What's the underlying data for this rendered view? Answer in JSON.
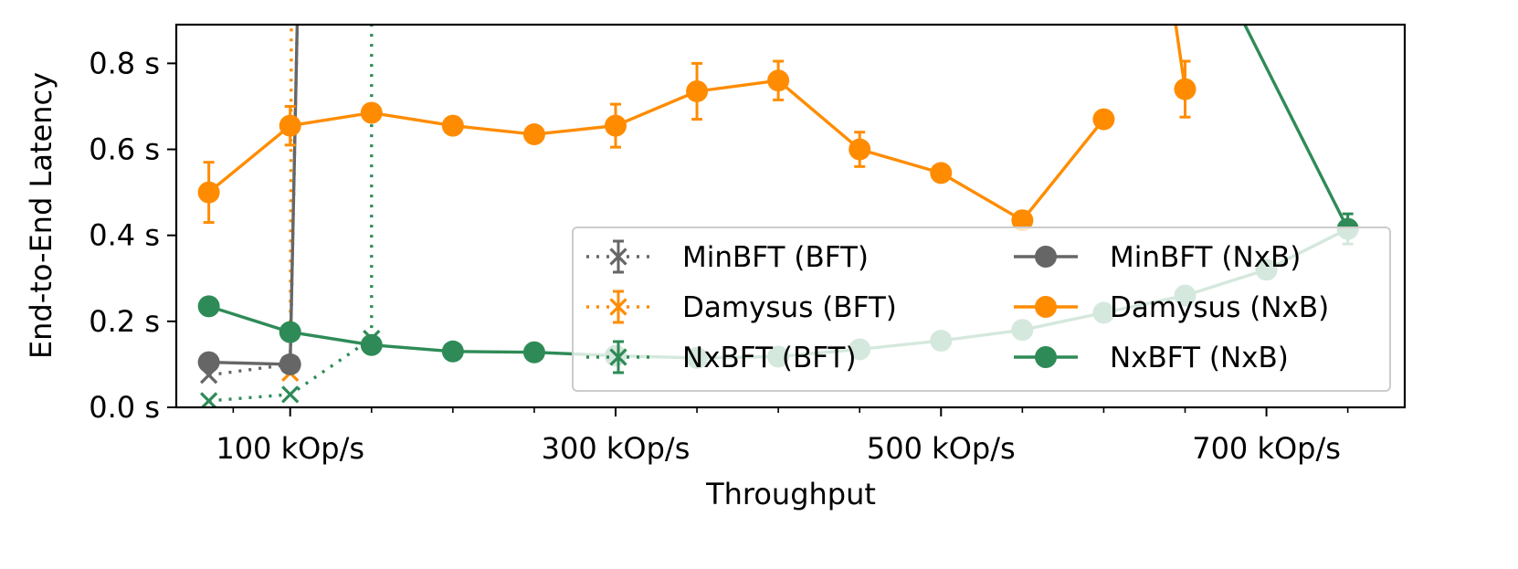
{
  "chart_data": {
    "type": "line",
    "title": "",
    "xlabel": "Throughput",
    "ylabel": "End-to-End Latency",
    "xlim": [
      30,
      785
    ],
    "ylim": [
      0,
      0.89
    ],
    "x_ticks": [
      {
        "value": 100,
        "label": "100 kOp/s"
      },
      {
        "value": 300,
        "label": "300 kOp/s"
      },
      {
        "value": 500,
        "label": "500 kOp/s"
      },
      {
        "value": 700,
        "label": "700 kOp/s"
      }
    ],
    "x_minor_ticks": [
      65,
      150,
      200,
      250,
      350,
      400,
      450,
      550,
      600,
      650,
      750
    ],
    "y_ticks": [
      {
        "value": 0.0,
        "label": "0.0 s"
      },
      {
        "value": 0.2,
        "label": "0.2 s"
      },
      {
        "value": 0.4,
        "label": "0.4 s"
      },
      {
        "value": 0.6,
        "label": "0.6 s"
      },
      {
        "value": 0.8,
        "label": "0.8 s"
      }
    ],
    "grid": false,
    "legend_position": "lower-right",
    "legend_columns": 2,
    "series": [
      {
        "name": "MinBFT (BFT)",
        "color": "#666666",
        "linestyle": "dotted",
        "marker": "x",
        "x": [
          50,
          100,
          106
        ],
        "y": [
          0.075,
          0.1,
          1.2
        ],
        "err": [
          0,
          0,
          0
        ]
      },
      {
        "name": "Damysus (BFT)",
        "color": "#ff8c00",
        "linestyle": "dotted",
        "marker": "x",
        "x": [
          100,
          101
        ],
        "y": [
          0.08,
          1.2
        ],
        "err": [
          0,
          0
        ]
      },
      {
        "name": "NxBFT (BFT)",
        "color": "#2e8b57",
        "linestyle": "dotted",
        "marker": "x",
        "x": [
          50,
          100,
          150,
          150
        ],
        "y": [
          0.015,
          0.03,
          0.16,
          1.2
        ],
        "err": [
          0,
          0,
          0,
          0
        ]
      },
      {
        "name": "MinBFT (NxB)",
        "color": "#666666",
        "linestyle": "solid",
        "marker": "o",
        "x": [
          50,
          100,
          106
        ],
        "y": [
          0.105,
          0.1,
          1.2
        ],
        "err": [
          0,
          0,
          0
        ]
      },
      {
        "name": "Damysus (NxB)",
        "color": "#ff8c00",
        "linestyle": "solid",
        "marker": "o",
        "x": [
          50,
          100,
          150,
          200,
          250,
          300,
          350,
          400,
          450,
          500,
          550,
          600,
          640,
          650
        ],
        "y": [
          0.5,
          0.655,
          0.685,
          0.655,
          0.635,
          0.655,
          0.735,
          0.76,
          0.6,
          0.545,
          0.435,
          0.67,
          1.0,
          0.74
        ],
        "err": [
          0.07,
          0.045,
          0,
          0,
          0,
          0.05,
          0.065,
          0.045,
          0.04,
          0,
          0.02,
          0,
          0,
          0.065
        ],
        "draw_marker": [
          true,
          true,
          true,
          true,
          true,
          true,
          true,
          true,
          true,
          true,
          true,
          true,
          false,
          true
        ],
        "segments": [
          [
            0,
            11
          ],
          [
            12,
            13
          ]
        ]
      },
      {
        "name": "NxBFT (NxB)",
        "color": "#2e8b57",
        "linestyle": "solid",
        "marker": "o",
        "x": [
          50,
          100,
          150,
          200,
          250,
          300,
          350,
          400,
          450,
          500,
          550,
          600,
          650,
          700,
          750
        ],
        "y": [
          0.235,
          0.175,
          0.145,
          0.13,
          0.128,
          0.12,
          0.115,
          0.118,
          0.135,
          0.155,
          0.18,
          0.22,
          0.26,
          0.32,
          0.415
        ],
        "err": [
          0,
          0,
          0,
          0,
          0,
          0,
          0,
          0,
          0,
          0,
          0,
          0,
          0.02,
          0.02,
          0.035
        ],
        "tail_from": [
          672,
          1.0
        ]
      }
    ]
  }
}
